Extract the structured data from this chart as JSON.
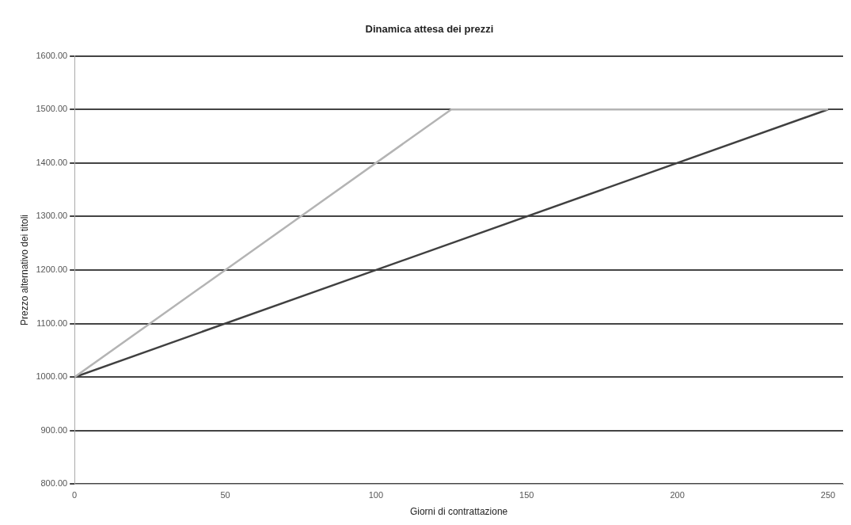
{
  "chart_data": {
    "type": "line",
    "title": "Dinamica attesa dei prezzi",
    "xlabel": "Giorni di contrattazione",
    "ylabel": "Prezzo alternativo dei titoli",
    "series": [
      {
        "color": "#b4b4b4",
        "x": [
          0,
          125,
          250
        ],
        "values": [
          1000,
          1500,
          1500
        ]
      },
      {
        "color": "#404040",
        "x": [
          0,
          250
        ],
        "values": [
          1000,
          1500
        ]
      }
    ],
    "xlim": [
      0,
      255
    ],
    "xticks": [
      0,
      50,
      100,
      150,
      200,
      250
    ],
    "ylim": [
      800,
      1600
    ],
    "yticks": [
      {
        "value": 800,
        "label": "800.00"
      },
      {
        "value": 900,
        "label": "900.00"
      },
      {
        "value": 1000,
        "label": "1000.00"
      },
      {
        "value": 1100,
        "label": "1100.00"
      },
      {
        "value": 1200,
        "label": "1200.00"
      },
      {
        "value": 1300,
        "label": "1300.00"
      },
      {
        "value": 1400,
        "label": "1400.00"
      },
      {
        "value": 1500,
        "label": "1500.00"
      },
      {
        "value": 1600,
        "label": "1600.00"
      }
    ],
    "grid": "y",
    "legend": false,
    "marker": "none",
    "line_style": "solid"
  }
}
